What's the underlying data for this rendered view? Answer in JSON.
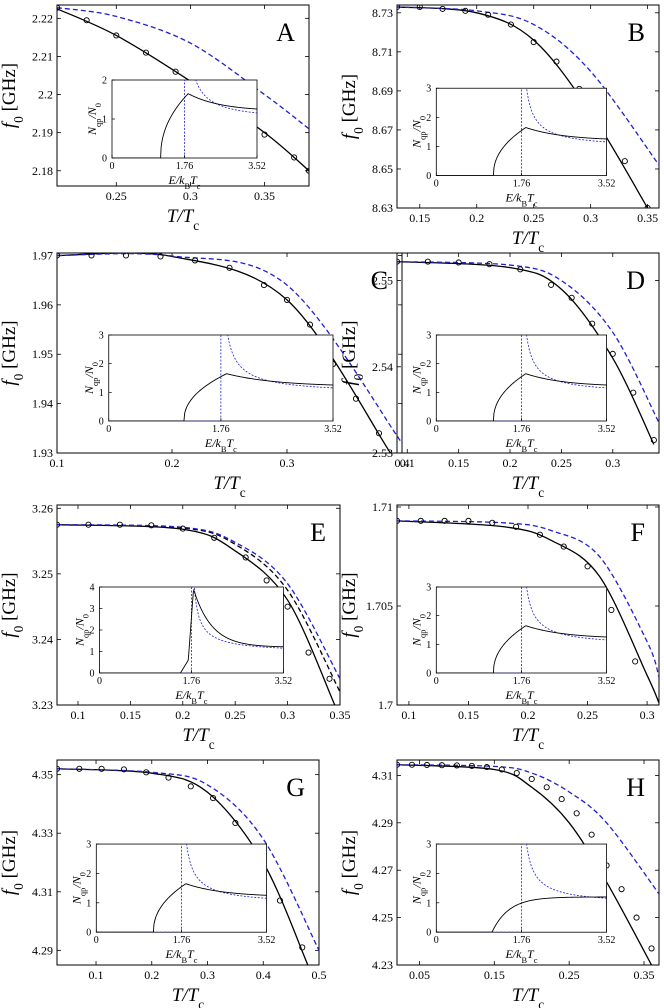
{
  "figure": {
    "panels": [
      "A",
      "B",
      "C",
      "D",
      "E",
      "F",
      "G",
      "H"
    ]
  },
  "labels": {
    "ylabel": "f0 [GHz]",
    "xlabel": "T/Tc",
    "inset_ylabel": "Nqp/N0",
    "inset_xlabel": "E/kBTc"
  },
  "colors": {
    "fit": "#000000",
    "bcs": "#1f1fd6",
    "points": "#000000"
  },
  "chart_data": [
    {
      "type": "line",
      "panel": "A",
      "xlim": [
        0.21,
        0.38
      ],
      "ylim": [
        2.176,
        2.2235
      ],
      "xticks": [
        0.25,
        0.3,
        0.35
      ],
      "xtick_labels": [
        "0.25",
        "0.3",
        "0.35"
      ],
      "yticks": [
        2.18,
        2.19,
        2.2,
        2.21,
        2.22
      ],
      "ytick_labels": [
        "2.18",
        "2.19",
        "2.2",
        "2.21",
        "2.22"
      ],
      "series": [
        {
          "style": "solid-black",
          "x": [
            0.21,
            0.25,
            0.3,
            0.35,
            0.38
          ],
          "y": [
            2.2225,
            2.2155,
            2.2035,
            2.19,
            2.18
          ]
        },
        {
          "style": "dashed-blue",
          "x": [
            0.21,
            0.25,
            0.3,
            0.35,
            0.38
          ],
          "y": [
            2.2228,
            2.2205,
            2.2135,
            2.2,
            2.191
          ]
        },
        {
          "style": "markers",
          "x": [
            0.21,
            0.23,
            0.25,
            0.27,
            0.29,
            0.31,
            0.33,
            0.35,
            0.37,
            0.38
          ],
          "y": [
            2.2228,
            2.2195,
            2.2155,
            2.211,
            2.206,
            2.2005,
            2.195,
            2.1895,
            2.1835,
            2.18
          ]
        }
      ],
      "inset": {
        "ymax": 2,
        "yticks": [
          0,
          1,
          2
        ],
        "xticks": [
          "0",
          "1.76",
          "3.52"
        ],
        "gap": 1.76,
        "shape": "broadened"
      }
    },
    {
      "type": "line",
      "panel": "B",
      "xlim": [
        0.13,
        0.36
      ],
      "ylim": [
        8.63,
        8.734
      ],
      "xticks": [
        0.15,
        0.2,
        0.25,
        0.3,
        0.35
      ],
      "xtick_labels": [
        "0.15",
        "0.2",
        "0.25",
        "0.3",
        "0.35"
      ],
      "yticks": [
        8.63,
        8.65,
        8.67,
        8.69,
        8.71,
        8.73
      ],
      "ytick_labels": [
        "8.63",
        "8.65",
        "8.67",
        "8.69",
        "8.71",
        "8.73"
      ],
      "series": [
        {
          "style": "solid-black",
          "x": [
            0.13,
            0.2,
            0.25,
            0.3,
            0.35
          ],
          "y": [
            8.733,
            8.73,
            8.716,
            8.679,
            8.63
          ]
        },
        {
          "style": "dashed-blue",
          "x": [
            0.13,
            0.2,
            0.25,
            0.3,
            0.36
          ],
          "y": [
            8.733,
            8.731,
            8.724,
            8.7,
            8.652
          ]
        },
        {
          "style": "markers",
          "x": [
            0.13,
            0.15,
            0.17,
            0.19,
            0.21,
            0.23,
            0.25,
            0.27,
            0.29,
            0.31,
            0.33,
            0.35
          ],
          "y": [
            8.733,
            8.733,
            8.732,
            8.731,
            8.729,
            8.724,
            8.715,
            8.705,
            8.691,
            8.67,
            8.654,
            8.63
          ]
        }
      ],
      "inset": {
        "ymax": 3,
        "yticks": [
          0,
          1,
          2,
          3
        ],
        "xticks": [
          "0",
          "1.76",
          "3.52"
        ],
        "gap": 1.76,
        "shape": "broadened"
      }
    },
    {
      "type": "line",
      "panel": "C",
      "xlim": [
        0.1,
        0.4
      ],
      "ylim": [
        1.93,
        1.9705
      ],
      "xticks": [
        0.1,
        0.2,
        0.3,
        0.4
      ],
      "xtick_labels": [
        "0.1",
        "0.2",
        "0.3",
        "0.4"
      ],
      "yticks": [
        1.93,
        1.94,
        1.95,
        1.96,
        1.97
      ],
      "ytick_labels": [
        "1.93",
        "1.94",
        "1.95",
        "1.96",
        "1.97"
      ],
      "series": [
        {
          "style": "solid-black",
          "x": [
            0.1,
            0.2,
            0.3,
            0.39
          ],
          "y": [
            1.97,
            1.9698,
            1.961,
            1.93
          ]
        },
        {
          "style": "dashed-blue",
          "x": [
            0.1,
            0.2,
            0.3,
            0.4
          ],
          "y": [
            1.97,
            1.9699,
            1.964,
            1.932
          ]
        },
        {
          "style": "markers",
          "x": [
            0.1,
            0.13,
            0.16,
            0.19,
            0.22,
            0.25,
            0.28,
            0.3,
            0.32,
            0.34,
            0.36,
            0.38
          ],
          "y": [
            1.97,
            1.97,
            1.97,
            1.9698,
            1.969,
            1.9675,
            1.964,
            1.961,
            1.956,
            1.948,
            1.941,
            1.934
          ]
        }
      ],
      "inset": {
        "ymax": 3,
        "yticks": [
          0,
          1,
          2,
          3
        ],
        "xticks": [
          "0",
          "1.76",
          "3.52"
        ],
        "gap": 1.76,
        "shape": "broadened"
      }
    },
    {
      "type": "line",
      "panel": "D",
      "xlim": [
        0.09,
        0.345
      ],
      "ylim": [
        2.53,
        2.5532
      ],
      "xticks": [
        0.1,
        0.15,
        0.2,
        0.25,
        0.3
      ],
      "xtick_labels": [
        "0.1",
        "0.15",
        "0.2",
        "0.25",
        "0.3"
      ],
      "yticks": [
        2.53,
        2.54,
        2.55
      ],
      "ytick_labels": [
        "2.53",
        "2.54",
        "2.55"
      ],
      "series": [
        {
          "style": "solid-black",
          "x": [
            0.09,
            0.2,
            0.25,
            0.3,
            0.34
          ],
          "y": [
            2.5522,
            2.5515,
            2.549,
            2.541,
            2.531
          ]
        },
        {
          "style": "dashed-blue",
          "x": [
            0.09,
            0.2,
            0.25,
            0.3,
            0.345
          ],
          "y": [
            2.5522,
            2.5518,
            2.55,
            2.544,
            2.5335
          ]
        },
        {
          "style": "markers",
          "x": [
            0.09,
            0.12,
            0.15,
            0.18,
            0.21,
            0.24,
            0.26,
            0.28,
            0.3,
            0.32,
            0.34
          ],
          "y": [
            2.5522,
            2.5522,
            2.5521,
            2.5519,
            2.5513,
            2.5495,
            2.548,
            2.545,
            2.5415,
            2.537,
            2.5315
          ]
        }
      ],
      "inset": {
        "ymax": 3,
        "yticks": [
          0,
          1,
          2,
          3
        ],
        "xticks": [
          "0",
          "1.76",
          "3.52"
        ],
        "gap": 1.76,
        "shape": "broadened"
      }
    },
    {
      "type": "line",
      "panel": "E",
      "xlim": [
        0.08,
        0.35
      ],
      "ylim": [
        3.23,
        3.2605
      ],
      "xticks": [
        0.1,
        0.15,
        0.2,
        0.25,
        0.3,
        0.35
      ],
      "xtick_labels": [
        "0.1",
        "0.15",
        "0.2",
        "0.25",
        "0.3",
        "0.35"
      ],
      "yticks": [
        3.23,
        3.24,
        3.25,
        3.26
      ],
      "ytick_labels": [
        "3.23",
        "3.24",
        "3.25",
        "3.26"
      ],
      "series": [
        {
          "style": "solid-black",
          "x": [
            0.08,
            0.2,
            0.25,
            0.3,
            0.345
          ],
          "y": [
            3.2575,
            3.2568,
            3.2535,
            3.246,
            3.23
          ]
        },
        {
          "style": "dashed-black",
          "x": [
            0.08,
            0.2,
            0.25,
            0.3,
            0.35
          ],
          "y": [
            3.2575,
            3.257,
            3.2545,
            3.2475,
            3.232
          ]
        },
        {
          "style": "dashed-blue",
          "x": [
            0.08,
            0.2,
            0.25,
            0.3,
            0.35
          ],
          "y": [
            3.2575,
            3.2571,
            3.2548,
            3.2485,
            3.234
          ]
        },
        {
          "style": "markers",
          "x": [
            0.08,
            0.11,
            0.14,
            0.17,
            0.2,
            0.23,
            0.26,
            0.28,
            0.3,
            0.32,
            0.34
          ],
          "y": [
            3.2575,
            3.2575,
            3.2575,
            3.2574,
            3.2569,
            3.2555,
            3.2525,
            3.249,
            3.245,
            3.238,
            3.234
          ]
        }
      ],
      "inset": {
        "ymax": 4,
        "yticks": [
          0,
          1,
          2,
          3,
          4
        ],
        "xticks": [
          "0",
          "1.76",
          "3.52"
        ],
        "gap": 1.76,
        "shape": "sharp"
      }
    },
    {
      "type": "line",
      "panel": "F",
      "xlim": [
        0.09,
        0.31
      ],
      "ylim": [
        1.7,
        1.7101
      ],
      "xticks": [
        0.1,
        0.15,
        0.2,
        0.25,
        0.3
      ],
      "xtick_labels": [
        "0.1",
        "0.15",
        "0.2",
        "0.25",
        "0.3"
      ],
      "yticks": [
        1.7,
        1.705,
        1.71
      ],
      "ytick_labels": [
        "1.7",
        "1.705",
        "1.71"
      ],
      "series": [
        {
          "style": "solid-black",
          "x": [
            0.09,
            0.18,
            0.22,
            0.26,
            0.3,
            0.31
          ],
          "y": [
            1.7093,
            1.709,
            1.7083,
            1.7065,
            1.7015,
            1.7001
          ]
        },
        {
          "style": "dashed-blue",
          "x": [
            0.09,
            0.18,
            0.22,
            0.26,
            0.3,
            0.31
          ],
          "y": [
            1.7093,
            1.7092,
            1.7088,
            1.7075,
            1.7032,
            1.7014
          ]
        },
        {
          "style": "markers",
          "x": [
            0.09,
            0.11,
            0.13,
            0.15,
            0.17,
            0.19,
            0.21,
            0.23,
            0.25,
            0.27,
            0.29
          ],
          "y": [
            1.7093,
            1.7093,
            1.7093,
            1.7093,
            1.7092,
            1.709,
            1.7086,
            1.708,
            1.707,
            1.7048,
            1.7022
          ]
        }
      ],
      "inset": {
        "ymax": 3,
        "yticks": [
          0,
          1,
          2,
          3
        ],
        "xticks": [
          "0",
          "1.76",
          "3.52"
        ],
        "gap": 1.76,
        "shape": "broadened"
      }
    },
    {
      "type": "line",
      "panel": "G",
      "xlim": [
        0.03,
        0.5
      ],
      "ylim": [
        4.285,
        4.355
      ],
      "xticks": [
        0.1,
        0.2,
        0.3,
        0.4,
        0.5
      ],
      "xtick_labels": [
        "0.1",
        "0.2",
        "0.3",
        "0.4",
        "0.5"
      ],
      "yticks": [
        4.29,
        4.31,
        4.33,
        4.35
      ],
      "ytick_labels": [
        "4.29",
        "4.31",
        "4.33",
        "4.35"
      ],
      "series": [
        {
          "style": "solid-black",
          "x": [
            0.03,
            0.2,
            0.3,
            0.4,
            0.48
          ],
          "y": [
            4.352,
            4.3505,
            4.344,
            4.32,
            4.285
          ]
        },
        {
          "style": "dashed-blue",
          "x": [
            0.03,
            0.2,
            0.3,
            0.4,
            0.5
          ],
          "y": [
            4.352,
            4.3508,
            4.3465,
            4.328,
            4.29
          ]
        },
        {
          "style": "markers",
          "x": [
            0.03,
            0.07,
            0.11,
            0.15,
            0.19,
            0.23,
            0.27,
            0.31,
            0.35,
            0.39,
            0.43,
            0.47
          ],
          "y": [
            4.352,
            4.352,
            4.352,
            4.3518,
            4.3508,
            4.349,
            4.346,
            4.342,
            4.3335,
            4.3235,
            4.307,
            4.291
          ]
        }
      ],
      "inset": {
        "ymax": 3,
        "yticks": [
          0,
          1,
          2,
          3
        ],
        "xticks": [
          "0",
          "1.76",
          "3.52"
        ],
        "gap": 1.76,
        "shape": "broadened"
      }
    },
    {
      "type": "line",
      "panel": "H",
      "xlim": [
        0.02,
        0.37
      ],
      "ylim": [
        4.23,
        4.3165
      ],
      "xticks": [
        0.05,
        0.15,
        0.25,
        0.35
      ],
      "xtick_labels": [
        "0.05",
        "0.15",
        "0.25",
        "0.35"
      ],
      "yticks": [
        4.23,
        4.25,
        4.27,
        4.29,
        4.31
      ],
      "ytick_labels": [
        "4.23",
        "4.25",
        "4.27",
        "4.29",
        "4.31"
      ],
      "series": [
        {
          "style": "solid-black",
          "x": [
            0.02,
            0.15,
            0.2,
            0.25,
            0.3,
            0.36
          ],
          "y": [
            4.3145,
            4.3125,
            4.305,
            4.29,
            4.265,
            4.23
          ]
        },
        {
          "style": "dashed-blue",
          "x": [
            0.02,
            0.15,
            0.2,
            0.25,
            0.3,
            0.37
          ],
          "y": [
            4.3145,
            4.3138,
            4.311,
            4.303,
            4.29,
            4.26
          ]
        },
        {
          "style": "markers",
          "x": [
            0.02,
            0.04,
            0.06,
            0.08,
            0.1,
            0.12,
            0.14,
            0.16,
            0.18,
            0.2,
            0.22,
            0.24,
            0.26,
            0.28,
            0.3,
            0.32,
            0.34,
            0.36
          ],
          "y": [
            4.3145,
            4.3145,
            4.3144,
            4.3143,
            4.3142,
            4.314,
            4.3135,
            4.3125,
            4.311,
            4.3085,
            4.305,
            4.3,
            4.294,
            4.285,
            4.272,
            4.262,
            4.25,
            4.237
          ]
        }
      ],
      "inset": {
        "ymax": 3,
        "yticks": [
          0,
          1,
          2,
          3
        ],
        "xticks": [
          "0",
          "1.76",
          "3.52"
        ],
        "gap": 1.76,
        "shape": "gapless"
      }
    }
  ]
}
